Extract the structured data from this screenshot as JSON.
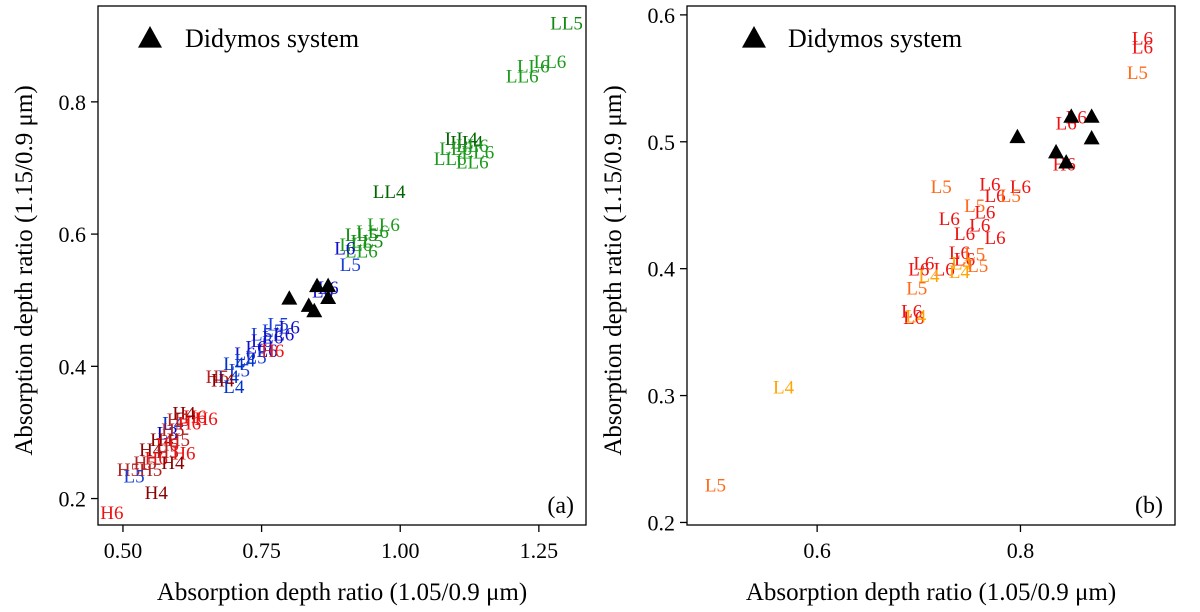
{
  "colors": {
    "H4": "#8b0000",
    "H5": "#b22222",
    "H6": "#ee1111",
    "L3": "#0000cc",
    "L4": "#0033cc",
    "L5": "#1a3fd6",
    "L6": "#1010c8",
    "LL4": "#006400",
    "LL5": "#118811",
    "LL6": "#1a9a1a",
    "b_L4": "#ffa500",
    "b_L5": "#ff6a1a",
    "b_L6": "#ee1111",
    "didymos": "#000000"
  },
  "chart_data": [
    {
      "panel_label": "(a)",
      "type": "scatter",
      "xlabel": "Absorption depth ratio (1.05/0.9 μm)",
      "ylabel": "Absorption depth ratio (1.15/0.9 μm)",
      "xlim": [
        0.455,
        1.335
      ],
      "ylim": [
        0.16,
        0.945
      ],
      "xticks": [
        0.5,
        0.75,
        1.0,
        1.25
      ],
      "xtick_labels": [
        "0.50",
        "0.75",
        "1.00",
        "1.25"
      ],
      "yticks": [
        0.2,
        0.4,
        0.6,
        0.8
      ],
      "ytick_labels": [
        "0.2",
        "0.4",
        "0.6",
        "0.8"
      ],
      "legend": {
        "label": "Didymos system",
        "position": "top-left"
      },
      "grid": false,
      "labeled_points": [
        {
          "label": "LL5",
          "color_key": "LL5",
          "x": 1.3,
          "y": 0.92
        },
        {
          "label": "LL6",
          "color_key": "LL6",
          "x": 1.27,
          "y": 0.862
        },
        {
          "label": "LL6",
          "color_key": "LL6",
          "x": 1.24,
          "y": 0.855
        },
        {
          "label": "LL6",
          "color_key": "LL6",
          "x": 1.22,
          "y": 0.84
        },
        {
          "label": "LL4",
          "color_key": "LL4",
          "x": 1.11,
          "y": 0.745
        },
        {
          "label": "LL4",
          "color_key": "LL4",
          "x": 1.12,
          "y": 0.74
        },
        {
          "label": "LL6",
          "color_key": "LL6",
          "x": 1.13,
          "y": 0.735
        },
        {
          "label": "LL6",
          "color_key": "LL6",
          "x": 1.1,
          "y": 0.73
        },
        {
          "label": "LL6",
          "color_key": "LL6",
          "x": 1.14,
          "y": 0.725
        },
        {
          "label": "LL6",
          "color_key": "LL6",
          "x": 1.09,
          "y": 0.715
        },
        {
          "label": "LL6",
          "color_key": "LL6",
          "x": 1.13,
          "y": 0.71
        },
        {
          "label": "LL4",
          "color_key": "LL4",
          "x": 0.98,
          "y": 0.665
        },
        {
          "label": "LL6",
          "color_key": "LL6",
          "x": 0.97,
          "y": 0.615
        },
        {
          "label": "LL6",
          "color_key": "LL6",
          "x": 0.95,
          "y": 0.605
        },
        {
          "label": "LL5",
          "color_key": "LL5",
          "x": 0.93,
          "y": 0.6
        },
        {
          "label": "LL5",
          "color_key": "LL5",
          "x": 0.94,
          "y": 0.59
        },
        {
          "label": "LL6",
          "color_key": "LL6",
          "x": 0.92,
          "y": 0.585
        },
        {
          "label": "LL6",
          "color_key": "LL6",
          "x": 0.93,
          "y": 0.575
        },
        {
          "label": "L6",
          "color_key": "L6",
          "x": 0.9,
          "y": 0.58
        },
        {
          "label": "L5",
          "color_key": "L5",
          "x": 0.91,
          "y": 0.555
        },
        {
          "label": "L6",
          "color_key": "L6",
          "x": 0.87,
          "y": 0.52
        },
        {
          "label": "L6",
          "color_key": "L6",
          "x": 0.86,
          "y": 0.515
        },
        {
          "label": "L5",
          "color_key": "L5",
          "x": 0.78,
          "y": 0.465
        },
        {
          "label": "L6",
          "color_key": "L6",
          "x": 0.8,
          "y": 0.46
        },
        {
          "label": "L5",
          "color_key": "L5",
          "x": 0.77,
          "y": 0.455
        },
        {
          "label": "L6",
          "color_key": "L6",
          "x": 0.79,
          "y": 0.45
        },
        {
          "label": "L5",
          "color_key": "L5",
          "x": 0.75,
          "y": 0.45
        },
        {
          "label": "L6",
          "color_key": "L6",
          "x": 0.77,
          "y": 0.445
        },
        {
          "label": "L6",
          "color_key": "L6",
          "x": 0.75,
          "y": 0.44
        },
        {
          "label": "L6",
          "color_key": "L6",
          "x": 0.74,
          "y": 0.43
        },
        {
          "label": "L6",
          "color_key": "L6",
          "x": 0.76,
          "y": 0.425
        },
        {
          "label": "L6",
          "color_key": "L6",
          "x": 0.72,
          "y": 0.42
        },
        {
          "label": "H6",
          "color_key": "H6",
          "x": 0.77,
          "y": 0.425
        },
        {
          "label": "L5",
          "color_key": "L5",
          "x": 0.74,
          "y": 0.415
        },
        {
          "label": "L4",
          "color_key": "L4",
          "x": 0.72,
          "y": 0.41
        },
        {
          "label": "L4",
          "color_key": "L4",
          "x": 0.7,
          "y": 0.405
        },
        {
          "label": "L5",
          "color_key": "L5",
          "x": 0.71,
          "y": 0.395
        },
        {
          "label": "L4",
          "color_key": "L4",
          "x": 0.69,
          "y": 0.385
        },
        {
          "label": "H5",
          "color_key": "H5",
          "x": 0.67,
          "y": 0.385
        },
        {
          "label": "H4",
          "color_key": "H4",
          "x": 0.68,
          "y": 0.38
        },
        {
          "label": "L4",
          "color_key": "L4",
          "x": 0.7,
          "y": 0.37
        },
        {
          "label": "L4",
          "color_key": "L4",
          "x": 0.59,
          "y": 0.315
        },
        {
          "label": "L3",
          "color_key": "L3",
          "x": 0.58,
          "y": 0.3
        },
        {
          "label": "H6",
          "color_key": "H6",
          "x": 0.63,
          "y": 0.325
        },
        {
          "label": "H6",
          "color_key": "H6",
          "x": 0.65,
          "y": 0.322
        },
        {
          "label": "H4",
          "color_key": "H4",
          "x": 0.61,
          "y": 0.33
        },
        {
          "label": "H5",
          "color_key": "H5",
          "x": 0.6,
          "y": 0.32
        },
        {
          "label": "H6",
          "color_key": "H6",
          "x": 0.62,
          "y": 0.315
        },
        {
          "label": "H5",
          "color_key": "H5",
          "x": 0.59,
          "y": 0.305
        },
        {
          "label": "H4",
          "color_key": "H4",
          "x": 0.57,
          "y": 0.29
        },
        {
          "label": "H5",
          "color_key": "H5",
          "x": 0.6,
          "y": 0.29
        },
        {
          "label": "H6",
          "color_key": "H6",
          "x": 0.58,
          "y": 0.283
        },
        {
          "label": "H4",
          "color_key": "H4",
          "x": 0.55,
          "y": 0.275
        },
        {
          "label": "H5",
          "color_key": "H5",
          "x": 0.58,
          "y": 0.272
        },
        {
          "label": "H6",
          "color_key": "H6",
          "x": 0.61,
          "y": 0.27
        },
        {
          "label": "H6",
          "color_key": "H6",
          "x": 0.56,
          "y": 0.262
        },
        {
          "label": "H5",
          "color_key": "H5",
          "x": 0.54,
          "y": 0.255
        },
        {
          "label": "H4",
          "color_key": "H4",
          "x": 0.59,
          "y": 0.255
        },
        {
          "label": "H5",
          "color_key": "H5",
          "x": 0.51,
          "y": 0.245
        },
        {
          "label": "H5",
          "color_key": "H5",
          "x": 0.55,
          "y": 0.245
        },
        {
          "label": "L5",
          "color_key": "L5",
          "x": 0.52,
          "y": 0.235
        },
        {
          "label": "H4",
          "color_key": "H4",
          "x": 0.56,
          "y": 0.21
        },
        {
          "label": "H6",
          "color_key": "H6",
          "x": 0.48,
          "y": 0.18
        }
      ],
      "didymos_points": [
        {
          "x": 0.8,
          "y": 0.503
        },
        {
          "x": 0.85,
          "y": 0.522
        },
        {
          "x": 0.87,
          "y": 0.522
        },
        {
          "x": 0.835,
          "y": 0.492
        },
        {
          "x": 0.845,
          "y": 0.484
        },
        {
          "x": 0.87,
          "y": 0.504
        }
      ]
    },
    {
      "panel_label": "(b)",
      "type": "scatter",
      "xlabel": "Absorption depth ratio (1.05/0.9 μm)",
      "ylabel": "Absorption depth ratio (1.15/0.9 μm)",
      "xlim": [
        0.472,
        0.952
      ],
      "ylim": [
        0.198,
        0.607
      ],
      "xticks": [
        0.6,
        0.8
      ],
      "xtick_labels": [
        "0.6",
        "0.8"
      ],
      "yticks": [
        0.2,
        0.3,
        0.4,
        0.5,
        0.6
      ],
      "ytick_labels": [
        "0.2",
        "0.3",
        "0.4",
        "0.5",
        "0.6"
      ],
      "legend": {
        "label": "Didymos system",
        "position": "top-left"
      },
      "grid": false,
      "labeled_points": [
        {
          "label": "L6",
          "color_key": "b_L6",
          "x": 0.92,
          "y": 0.582
        },
        {
          "label": "L6",
          "color_key": "b_L6",
          "x": 0.92,
          "y": 0.575
        },
        {
          "label": "L5",
          "color_key": "b_L5",
          "x": 0.915,
          "y": 0.555
        },
        {
          "label": "L6",
          "color_key": "b_L6",
          "x": 0.855,
          "y": 0.52
        },
        {
          "label": "L6",
          "color_key": "b_L6",
          "x": 0.845,
          "y": 0.515
        },
        {
          "label": "H6",
          "color_key": "b_L6",
          "x": 0.843,
          "y": 0.483
        },
        {
          "label": "L5",
          "color_key": "b_L5",
          "x": 0.722,
          "y": 0.465
        },
        {
          "label": "L6",
          "color_key": "b_L6",
          "x": 0.77,
          "y": 0.467
        },
        {
          "label": "L6",
          "color_key": "b_L6",
          "x": 0.8,
          "y": 0.465
        },
        {
          "label": "L6",
          "color_key": "b_L6",
          "x": 0.775,
          "y": 0.458
        },
        {
          "label": "L5",
          "color_key": "b_L5",
          "x": 0.79,
          "y": 0.458
        },
        {
          "label": "L5",
          "color_key": "b_L5",
          "x": 0.755,
          "y": 0.45
        },
        {
          "label": "L6",
          "color_key": "b_L6",
          "x": 0.765,
          "y": 0.445
        },
        {
          "label": "L6",
          "color_key": "b_L6",
          "x": 0.73,
          "y": 0.44
        },
        {
          "label": "L6",
          "color_key": "b_L6",
          "x": 0.76,
          "y": 0.435
        },
        {
          "label": "L6",
          "color_key": "b_L6",
          "x": 0.745,
          "y": 0.428
        },
        {
          "label": "L6",
          "color_key": "b_L6",
          "x": 0.775,
          "y": 0.425
        },
        {
          "label": "L6",
          "color_key": "b_L6",
          "x": 0.74,
          "y": 0.413
        },
        {
          "label": "L6",
          "color_key": "b_L6",
          "x": 0.745,
          "y": 0.408
        },
        {
          "label": "L5",
          "color_key": "b_L5",
          "x": 0.755,
          "y": 0.412
        },
        {
          "label": "L4",
          "color_key": "b_L4",
          "x": 0.742,
          "y": 0.405
        },
        {
          "label": "L5",
          "color_key": "b_L5",
          "x": 0.758,
          "y": 0.403
        },
        {
          "label": "L6",
          "color_key": "b_L6",
          "x": 0.705,
          "y": 0.405
        },
        {
          "label": "L6",
          "color_key": "b_L6",
          "x": 0.7,
          "y": 0.4
        },
        {
          "label": "L6",
          "color_key": "b_L6",
          "x": 0.725,
          "y": 0.4
        },
        {
          "label": "L4",
          "color_key": "b_L4",
          "x": 0.74,
          "y": 0.398
        },
        {
          "label": "L4",
          "color_key": "b_L4",
          "x": 0.71,
          "y": 0.395
        },
        {
          "label": "L5",
          "color_key": "b_L5",
          "x": 0.698,
          "y": 0.385
        },
        {
          "label": "L6",
          "color_key": "b_L6",
          "x": 0.693,
          "y": 0.367
        },
        {
          "label": "L6",
          "color_key": "b_L6",
          "x": 0.695,
          "y": 0.362
        },
        {
          "label": "L4",
          "color_key": "b_L4",
          "x": 0.697,
          "y": 0.363
        },
        {
          "label": "L4",
          "color_key": "b_L4",
          "x": 0.567,
          "y": 0.307
        },
        {
          "label": "L5",
          "color_key": "b_L5",
          "x": 0.5,
          "y": 0.23
        }
      ],
      "didymos_points": [
        {
          "x": 0.797,
          "y": 0.504
        },
        {
          "x": 0.85,
          "y": 0.52
        },
        {
          "x": 0.87,
          "y": 0.52
        },
        {
          "x": 0.835,
          "y": 0.492
        },
        {
          "x": 0.845,
          "y": 0.484
        },
        {
          "x": 0.87,
          "y": 0.503
        }
      ]
    }
  ]
}
